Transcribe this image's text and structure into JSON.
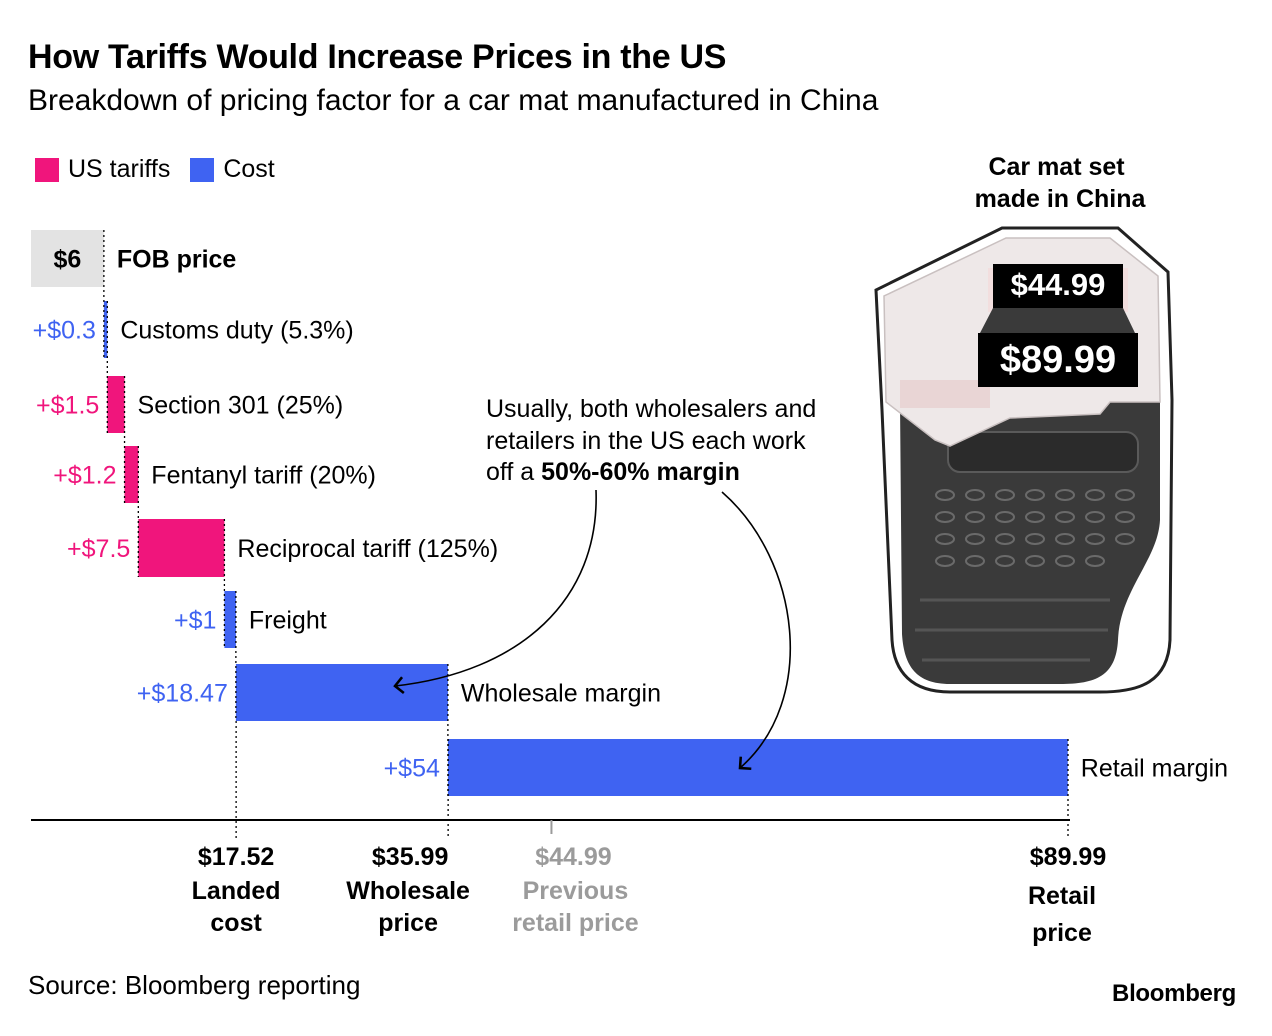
{
  "title": "How Tariffs Would Increase Prices in the US",
  "subtitle": "Breakdown of pricing factor for a car mat manufactured in China",
  "legend": [
    {
      "label": "US tariffs",
      "color": "#f0157c"
    },
    {
      "label": "Cost",
      "color": "#3f63f2"
    }
  ],
  "colors": {
    "tariff": "#f0157c",
    "cost": "#3f63f2",
    "muted": "#9b9b9b",
    "fob_box": "#e3e3e3"
  },
  "chart_data": {
    "type": "waterfall",
    "title": "How Tariffs Would Increase Prices in the US",
    "subtitle": "Breakdown of pricing factor for a car mat manufactured in China",
    "xlim": [
      0,
      89.99
    ],
    "steps": [
      {
        "kind": "base",
        "value": 6,
        "value_label": "$6",
        "label": "FOB price"
      },
      {
        "kind": "cost",
        "value": 0.3,
        "value_label": "+$0.3",
        "label": "Customs duty (5.3%)"
      },
      {
        "kind": "tariff",
        "value": 1.5,
        "value_label": "+$1.5",
        "label": "Section 301 (25%)"
      },
      {
        "kind": "tariff",
        "value": 1.2,
        "value_label": "+$1.2",
        "label": "Fentanyl tariff (20%)"
      },
      {
        "kind": "tariff",
        "value": 7.5,
        "value_label": "+$7.5",
        "label": "Reciprocal tariff (125%)"
      },
      {
        "kind": "cost",
        "value": 1,
        "value_label": "+$1",
        "label": "Freight"
      },
      {
        "kind": "cost",
        "value": 18.47,
        "value_label": "+$18.47",
        "label": "Wholesale margin"
      },
      {
        "kind": "cost",
        "value": 54,
        "value_label": "+$54",
        "label": "Retail margin"
      }
    ],
    "axis_marks": [
      {
        "value": 17.52,
        "value_label": "$17.52",
        "lines": [
          "Landed",
          "cost"
        ],
        "muted": false
      },
      {
        "value": 35.99,
        "value_label": "$35.99",
        "lines": [
          "Wholesale",
          "price"
        ],
        "muted": false
      },
      {
        "value": 44.99,
        "value_label": "$44.99",
        "lines": [
          "Previous",
          "retail price"
        ],
        "muted": true
      },
      {
        "value": 89.99,
        "value_label": "$89.99",
        "lines": [
          "Retail",
          "price"
        ],
        "muted": false
      }
    ],
    "annotation": {
      "lines": [
        "Usually, both wholesalers and",
        "retailers in the US each work"
      ],
      "last_prefix": "off a ",
      "last_bold": "50%-60% margin"
    }
  },
  "product": {
    "caption_lines": [
      "Car mat set",
      "made in China"
    ],
    "old_price": "$44.99",
    "new_price": "$89.99"
  },
  "source": "Source: Bloomberg reporting",
  "brand": "Bloomberg"
}
